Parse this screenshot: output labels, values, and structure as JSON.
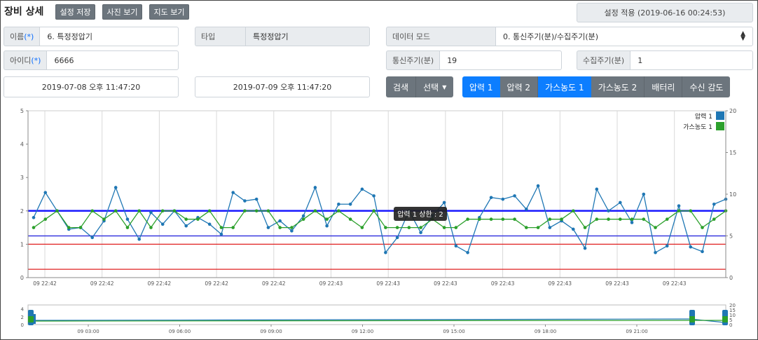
{
  "page": {
    "title": "장비 상세",
    "buttons": {
      "save": "설정 저장",
      "photo": "사진 보기",
      "map": "지도 보기"
    },
    "apply": "설정 적용 (2019-06-16 00:24:53)"
  },
  "form": {
    "name_label": "이름",
    "name_req": "(*)",
    "name_value": "6. 특정정압기",
    "type_label": "타입",
    "type_value": "특정정압기",
    "id_label": "아이디",
    "id_req": "(*)",
    "id_value": "6666",
    "datamode_label": "데이터 모드",
    "datamode_value": "0. 통신주기(분)/수집주기(분)",
    "comm_label": "통신주기(분)",
    "comm_value": "19",
    "collect_label": "수집주기(분)",
    "collect_value": "1",
    "date_from": "2019-07-08 오후 11:47:20",
    "date_to": "2019-07-09 오후 11:47:20"
  },
  "actions": {
    "search": "검색",
    "select": "선택"
  },
  "tabs": [
    {
      "label": "압력 1",
      "active": true
    },
    {
      "label": "압력 2",
      "active": false
    },
    {
      "label": "가스농도 1",
      "active": true
    },
    {
      "label": "가스농도 2",
      "active": false
    },
    {
      "label": "배터리",
      "active": false
    },
    {
      "label": "수신 감도",
      "active": false
    }
  ],
  "chart_data": {
    "type": "line",
    "x_tick_labels": [
      "09 22:42",
      "09 22:42",
      "09 22:42",
      "09 22:42",
      "09 22:42",
      "09 22:43",
      "09 22:43",
      "09 22:43",
      "09 22:43",
      "09 22:43",
      "09 22:43",
      "09 22:43"
    ],
    "y_left": {
      "min": 0,
      "max": 5,
      "ticks": [
        0,
        1,
        2,
        3,
        4,
        5
      ]
    },
    "y_right": {
      "min": 0,
      "max": 20,
      "ticks": [
        0,
        5,
        10,
        15,
        20
      ]
    },
    "legend": [
      {
        "name": "압력 1",
        "color": "#1f77b4"
      },
      {
        "name": "가스농도 1",
        "color": "#2ca02c"
      }
    ],
    "reference_lines": [
      {
        "value": 2.0,
        "color": "#1a1aff",
        "width": 2.5
      },
      {
        "value": 1.25,
        "color": "#3a3adf",
        "width": 1.5
      },
      {
        "value": 1.0,
        "color": "#e02020",
        "width": 1.2
      },
      {
        "value": 0.25,
        "color": "#e02020",
        "width": 1.2
      }
    ],
    "tooltip": "압력 1 상한 : 2",
    "series": [
      {
        "name": "압력 1",
        "color": "#1f77b4",
        "axis": "left",
        "values": [
          1.8,
          2.55,
          2.0,
          1.45,
          1.5,
          1.2,
          1.7,
          2.7,
          1.75,
          1.15,
          1.95,
          1.6,
          2.0,
          1.55,
          1.8,
          1.6,
          1.3,
          2.55,
          2.3,
          2.35,
          1.5,
          1.7,
          1.4,
          1.85,
          2.7,
          1.55,
          2.2,
          2.2,
          2.65,
          2.45,
          0.75,
          1.2,
          2.0,
          1.35,
          1.85,
          2.25,
          0.95,
          0.75,
          1.8,
          2.4,
          2.35,
          2.45,
          2.05,
          2.75,
          1.5,
          1.7,
          1.45,
          0.88,
          2.65,
          2.0,
          2.25,
          1.65,
          2.5,
          0.75,
          0.95,
          2.15,
          0.92,
          0.78,
          2.2,
          2.35
        ]
      },
      {
        "name": "가스농도 1",
        "color": "#2ca02c",
        "axis": "right",
        "values": [
          6,
          7,
          8,
          6,
          6,
          8,
          7,
          8,
          6,
          8,
          6,
          8,
          8,
          7,
          7,
          8,
          6,
          6,
          8,
          8,
          8,
          6,
          6,
          7,
          8,
          7,
          8,
          7,
          6,
          8,
          6,
          6,
          6,
          6,
          7,
          6,
          6,
          7,
          7,
          7,
          7,
          7,
          6,
          6,
          7,
          7,
          8,
          6,
          7,
          7,
          7,
          7,
          7,
          6,
          7,
          8,
          8,
          6,
          7,
          8
        ]
      }
    ]
  },
  "navigator": {
    "x_labels": [
      "09 03:00",
      "09 06:00",
      "09 09:00",
      "09 12:00",
      "09 15:00",
      "09 18:00",
      "09 21:00"
    ],
    "y_left_ticks": [
      0,
      2,
      4
    ],
    "y_right_ticks": [
      0,
      5,
      10,
      15,
      20
    ]
  }
}
